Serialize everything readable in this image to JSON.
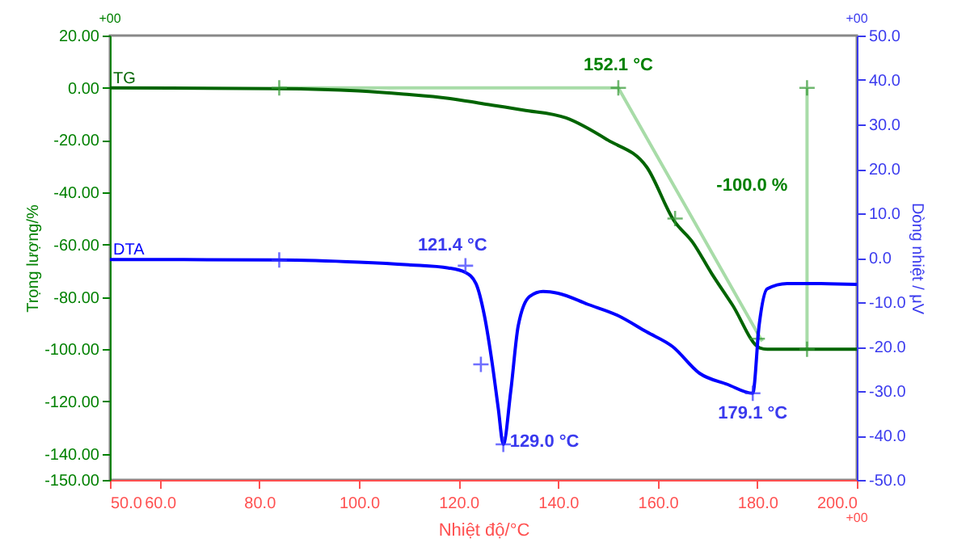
{
  "chart_data": {
    "type": "line",
    "xlabel": "Nhiệt độ/°C",
    "ylabel": "Trọng lượng/%",
    "y2label": "Dòng nhiệt / μV",
    "xlim": [
      50,
      200
    ],
    "xticks": [
      {
        "value": 50,
        "label": "50.0"
      },
      {
        "value": 60,
        "label": "60.0"
      },
      {
        "value": 80,
        "label": "80.0"
      },
      {
        "value": 100,
        "label": "100.0"
      },
      {
        "value": 120,
        "label": "120.0"
      },
      {
        "value": 140,
        "label": "140.0"
      },
      {
        "value": 160,
        "label": "160.0"
      },
      {
        "value": 180,
        "label": "180.0"
      },
      {
        "value": 200,
        "label": "200.0"
      }
    ],
    "ylim": [
      -150,
      20
    ],
    "yticks": [
      {
        "value": 20,
        "label": "20.00"
      },
      {
        "value": 0,
        "label": "0.00"
      },
      {
        "value": -20,
        "label": "-20.00"
      },
      {
        "value": -40,
        "label": "-40.00"
      },
      {
        "value": -60,
        "label": "-60.00"
      },
      {
        "value": -80,
        "label": "-80.00"
      },
      {
        "value": -100,
        "label": "-100.00"
      },
      {
        "value": -120,
        "label": "-120.00"
      },
      {
        "value": -140,
        "label": "-140.00"
      },
      {
        "value": -150,
        "label": "-150.00"
      }
    ],
    "y2lim": [
      -50,
      50
    ],
    "y2ticks": [
      {
        "value": 50,
        "label": "50.0"
      },
      {
        "value": 40,
        "label": "40.0"
      },
      {
        "value": 30,
        "label": "30.0"
      },
      {
        "value": 20,
        "label": "20.0"
      },
      {
        "value": 10,
        "label": "10.0"
      },
      {
        "value": 0,
        "label": "0.0"
      },
      {
        "value": -10,
        "label": "-10.0"
      },
      {
        "value": -20,
        "label": "-20.0"
      },
      {
        "value": -30,
        "label": "-30.0"
      },
      {
        "value": -40,
        "label": "-40.0"
      },
      {
        "value": -50,
        "label": "-50.0"
      }
    ],
    "grid": false,
    "line_style": "solid",
    "series": [
      {
        "type": "line",
        "color": "#a8dca8",
        "x": [
          84,
          152.1,
          181
        ],
        "values": [
          0,
          0,
          -97
        ]
      },
      {
        "type": "line",
        "color": "#a8dca8",
        "x": [
          190,
          190
        ],
        "values": [
          0,
          -100
        ]
      },
      {
        "name": "TG",
        "color": "#006400",
        "x": [
          50,
          84,
          100,
          109,
          118,
          125,
          133,
          141.6,
          150,
          157.8,
          163.3,
          167,
          170.8,
          175,
          180.5,
          182,
          190,
          200
        ],
        "values": [
          0,
          -0.3,
          -1.2,
          -2.4,
          -4,
          -6.1,
          -8.5,
          -11.5,
          -20,
          -30.3,
          -50.9,
          -59,
          -70.9,
          -83,
          -99.5,
          -100,
          -100,
          -100
        ]
      },
      {
        "name": "DTA",
        "axis": "y2",
        "color": "#0000ff",
        "x": [
          50,
          84,
          100,
          110,
          118,
          121.4,
          123.5,
          125.2,
          126.8,
          128,
          129,
          130.5,
          132,
          134.3,
          137,
          140,
          146,
          152,
          157.8,
          163,
          168.4,
          174,
          179.1,
          180.4,
          182,
          186,
          190,
          200
        ],
        "values": [
          -0.4,
          -0.5,
          -1,
          -1.6,
          -2.3,
          -3.3,
          -5.8,
          -13,
          -24,
          -34,
          -42,
          -30,
          -15.3,
          -8.7,
          -7.6,
          -8,
          -10.5,
          -13,
          -16.7,
          -20,
          -26,
          -28.5,
          -30.5,
          -15,
          -7,
          -5.8,
          -5.8,
          -6
        ]
      },
      {
        "type": "scatter",
        "marker": "cross",
        "color": "#339933",
        "x": [
          84,
          152.1,
          190,
          163.5,
          180,
          190
        ],
        "values": [
          0,
          0,
          0,
          -50,
          -96,
          -100
        ]
      },
      {
        "type": "scatter",
        "marker": "cross",
        "axis": "y2",
        "color": "#3333ff",
        "x": [
          84,
          121.4,
          124.5,
          129,
          179.1
        ],
        "values": [
          -0.5,
          -1.8,
          -24,
          -42,
          -30.5
        ]
      }
    ],
    "annotations": [
      {
        "text": "152.1 °C",
        "x": 152.1,
        "y": 0
      },
      {
        "text": "-100.0 %",
        "x": 190,
        "y": -50
      },
      {
        "text": "121.4 °C",
        "x": 121.4,
        "y": -69
      },
      {
        "text": "129.0 °C",
        "x": 129,
        "y": -135.5
      },
      {
        "text": "179.1 °C",
        "x": 179.1,
        "y": -116
      },
      "+00",
      "+00",
      "+00"
    ]
  }
}
